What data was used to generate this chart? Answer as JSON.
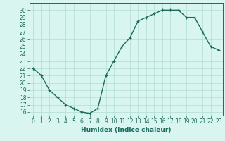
{
  "x": [
    0,
    1,
    2,
    3,
    4,
    5,
    6,
    7,
    8,
    9,
    10,
    11,
    12,
    13,
    14,
    15,
    16,
    17,
    18,
    19,
    20,
    21,
    22,
    23
  ],
  "y": [
    22,
    21,
    19,
    18,
    17,
    16.5,
    16,
    15.8,
    16.5,
    21,
    23,
    25,
    26.2,
    28.5,
    29,
    29.5,
    30,
    30,
    30,
    29,
    29,
    27,
    25,
    24.5
  ],
  "line_color": "#1a6b5a",
  "marker": "+",
  "bg_color": "#d8f5f0",
  "grid_color": "#b0ddd4",
  "xlabel": "Humidex (Indice chaleur)",
  "ylim": [
    15.5,
    31.0
  ],
  "xlim": [
    -0.5,
    23.5
  ],
  "yticks": [
    16,
    17,
    18,
    19,
    20,
    21,
    22,
    23,
    24,
    25,
    26,
    27,
    28,
    29,
    30
  ],
  "xticks": [
    0,
    1,
    2,
    3,
    4,
    5,
    6,
    7,
    8,
    9,
    10,
    11,
    12,
    13,
    14,
    15,
    16,
    17,
    18,
    19,
    20,
    21,
    22,
    23
  ],
  "xtick_labels": [
    "0",
    "1",
    "2",
    "3",
    "4",
    "5",
    "6",
    "7",
    "8",
    "9",
    "10",
    "11",
    "12",
    "13",
    "14",
    "15",
    "16",
    "17",
    "18",
    "19",
    "20",
    "21",
    "22",
    "23"
  ],
  "axis_color": "#1a6b5a",
  "label_fontsize": 6.5,
  "tick_fontsize": 5.5,
  "linewidth": 1.0,
  "markersize": 3.5,
  "markeredgewidth": 0.9
}
